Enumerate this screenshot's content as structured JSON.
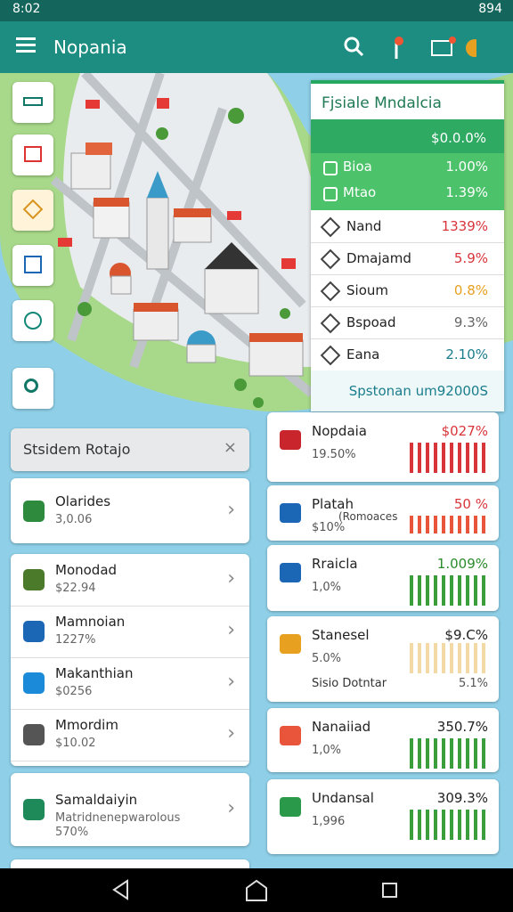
{
  "status_bar": {
    "time": "8:02",
    "battery": "894"
  },
  "app_bar": {
    "title": "Nopania"
  },
  "summary_panel": {
    "title": "Fjsiale Mndalcia",
    "subtitle": "$0.0.0%",
    "highlight_rows": [
      [
        "Bioa",
        "1.00%"
      ],
      [
        "Mtao",
        "1.39%"
      ]
    ],
    "rows": [
      [
        "Nand",
        "1339%"
      ],
      [
        "Dmajamd",
        "5.9%"
      ],
      [
        "Sioum",
        "0.8%"
      ],
      [
        "Bspoad",
        "9.3%"
      ],
      [
        "Eana",
        "2.10%"
      ]
    ],
    "footer": "Spstonan um92000S"
  },
  "left_list": {
    "header": "Stsidem Rotajo",
    "items": [
      {
        "title": "Olarides",
        "subtitle": "3,0.06"
      },
      {
        "title": "Monodad",
        "subtitle": "$22.94"
      },
      {
        "title": "Mamnoian",
        "subtitle": "1227%"
      },
      {
        "title": "Makanthian",
        "subtitle": "$0256"
      },
      {
        "title": "Mmordim",
        "subtitle": "$10.02"
      },
      {
        "title": "Samaldaiyin",
        "subtitle": "Matridnenepwarolous",
        "detail": "570%"
      }
    ]
  },
  "right_cards": [
    {
      "title": "Nopdaia",
      "subtitle": "19.50%",
      "value": "$027%"
    },
    {
      "title": "Platah",
      "subtitle": "$10%",
      "note": "(Romoaces",
      "value": "50 %"
    },
    {
      "title": "Rraicla",
      "subtitle": "1,0%",
      "value": "1.009%"
    },
    {
      "title": "Stanesel",
      "subtitle": "5.0%",
      "value": "$9.C%",
      "footer": "Sisio Dotntar",
      "footer_value": "5.1%"
    },
    {
      "title": "Nanaiiad",
      "subtitle": "1,0%",
      "value": "350.7%"
    },
    {
      "title": "Undansal",
      "subtitle": "1,996",
      "value": "309.3%"
    }
  ]
}
